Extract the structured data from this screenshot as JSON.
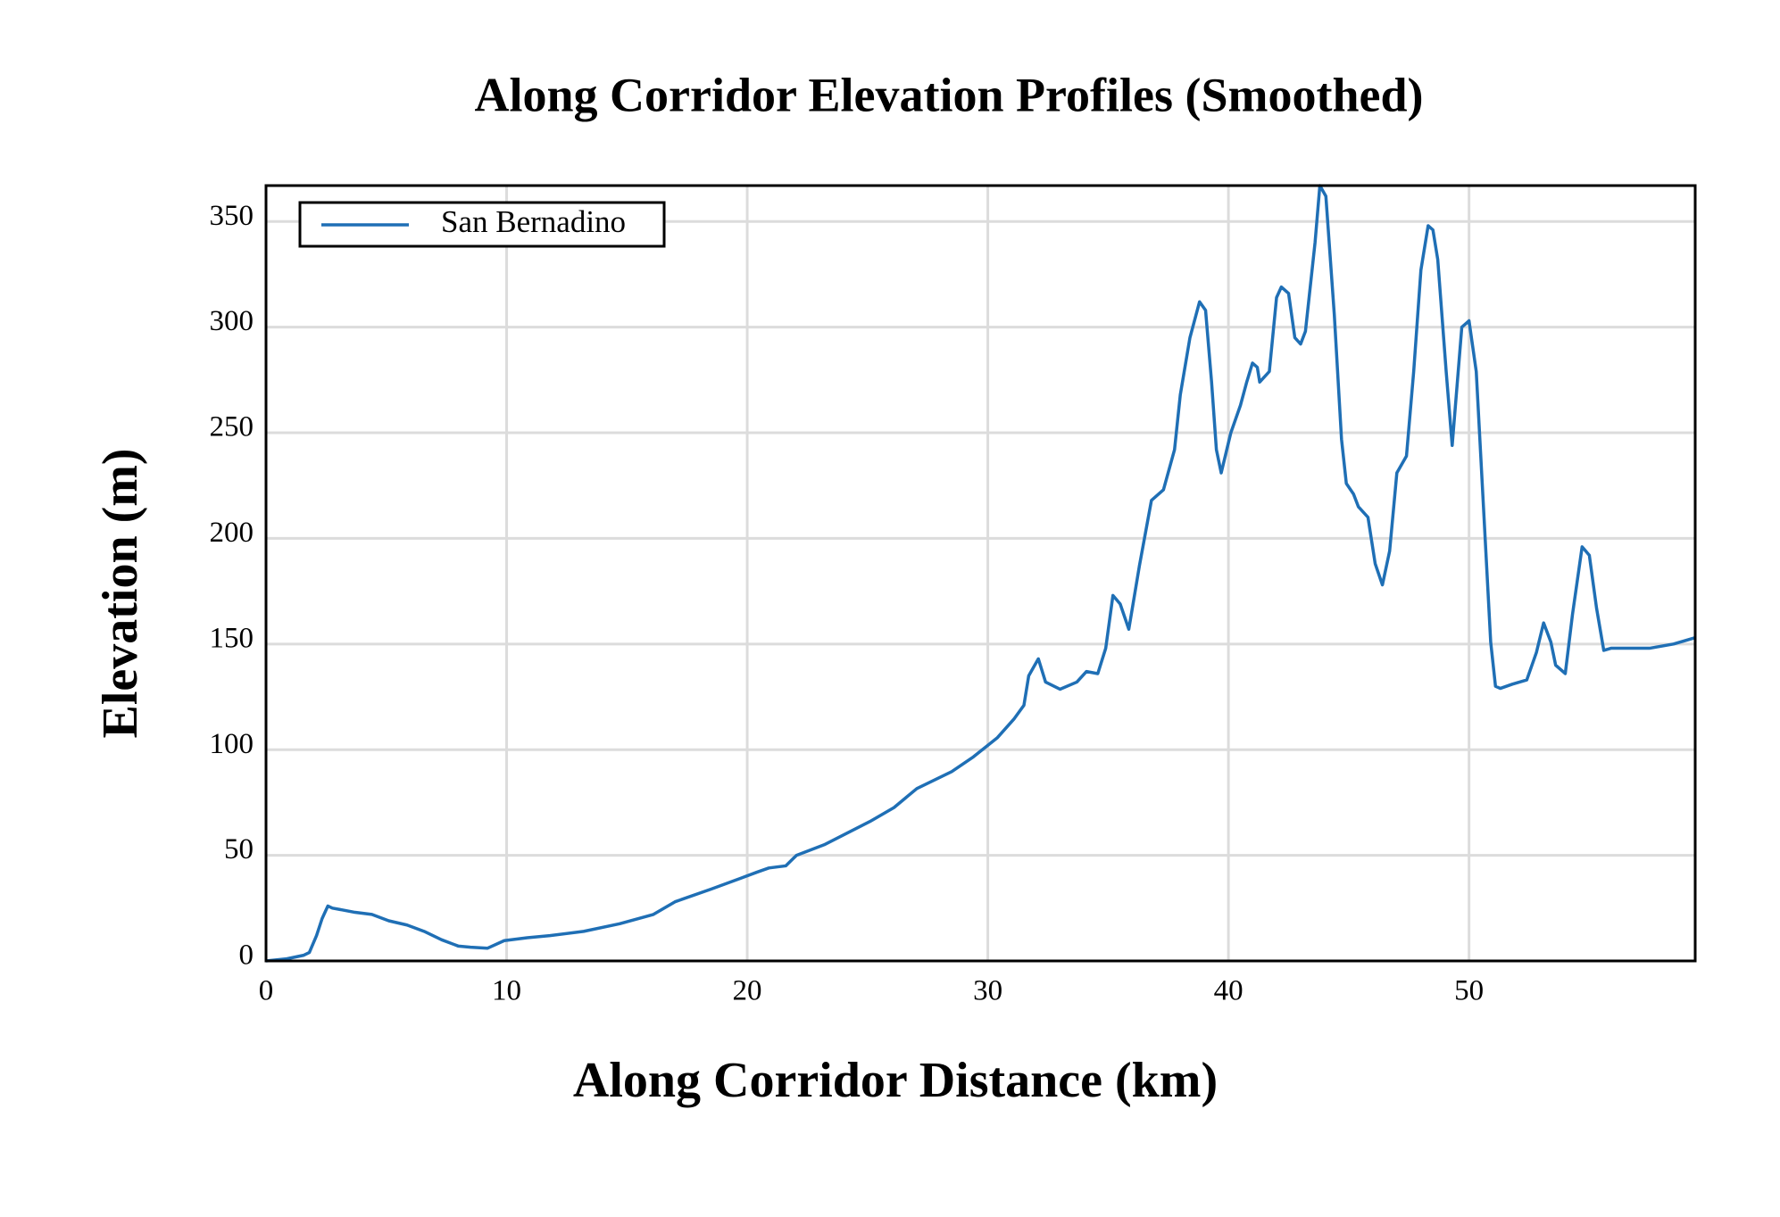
{
  "chart_data": {
    "type": "line",
    "title": "Along Corridor Elevation Profiles (Smoothed)",
    "x_label": "Along Corridor Distance (km)",
    "y_label": "Elevation (m)",
    "x": [
      0,
      0.86,
      1.57,
      1.8,
      2.1,
      2.33,
      2.57,
      2.76,
      3.24,
      3.7,
      4.4,
      5.1,
      5.86,
      6.57,
      7.3,
      8.0,
      8.5,
      9.2,
      9.9,
      10.86,
      11.8,
      13.2,
      14.7,
      16.1,
      17.0,
      18.5,
      19.7,
      20.4,
      20.9,
      21.6,
      22.05,
      23.2,
      25.1,
      26.1,
      27.05,
      28.5,
      29.4,
      30.4,
      31.1,
      31.5,
      31.7,
      32.1,
      32.4,
      33.0,
      33.7,
      34.1,
      34.57,
      34.9,
      35.2,
      35.5,
      35.86,
      36.3,
      36.8,
      37.3,
      37.76,
      38.0,
      38.4,
      38.8,
      39.05,
      39.3,
      39.5,
      39.7,
      40.1,
      40.5,
      40.76,
      41.0,
      41.2,
      41.3,
      41.7,
      42.0,
      42.2,
      42.5,
      42.76,
      43.0,
      43.2,
      43.6,
      43.8,
      44.05,
      44.4,
      44.7,
      44.9,
      45.2,
      45.4,
      45.8,
      46.1,
      46.4,
      46.7,
      47.0,
      47.4,
      47.7,
      48.0,
      48.3,
      48.5,
      48.7,
      49.05,
      49.3,
      49.7,
      50.0,
      50.3,
      50.6,
      50.9,
      51.1,
      51.3,
      51.8,
      52.4,
      52.8,
      53.1,
      53.4,
      53.6,
      54.0,
      54.3,
      54.7,
      55.0,
      55.3,
      55.6,
      55.9,
      57.5,
      58.5,
      59.4
    ],
    "series": [
      {
        "name": "San Bernadino",
        "color": "#1f6fb5",
        "values": [
          0,
          1,
          2.7,
          4,
          12,
          20,
          26,
          25,
          24,
          23,
          22,
          19,
          17,
          14,
          10,
          7,
          6.5,
          6,
          9.6,
          11,
          12,
          14,
          17.6,
          22,
          28,
          34,
          39,
          42,
          44,
          45,
          50,
          55,
          66,
          72.6,
          81.6,
          89.6,
          96.6,
          105.7,
          114.7,
          121,
          135,
          143,
          132,
          128.6,
          132,
          137,
          136,
          148,
          173,
          169,
          157,
          187,
          218,
          223,
          242,
          268,
          295,
          312,
          308,
          274,
          242,
          231,
          250,
          263,
          274,
          283,
          281,
          274,
          279,
          314,
          319,
          316,
          295,
          292,
          298,
          340,
          367,
          362,
          306,
          247,
          226,
          221,
          215,
          210,
          188,
          178,
          194,
          231,
          239,
          279,
          327,
          348,
          346,
          332,
          279,
          244,
          300,
          303,
          279,
          215,
          151,
          130,
          129,
          131,
          133,
          146,
          160,
          151,
          140,
          136,
          164,
          196,
          192,
          167,
          147,
          148,
          148,
          150,
          153
        ]
      }
    ],
    "xlim": [
      0,
      59.4
    ],
    "ylim": [
      0,
      367
    ],
    "xticks": [
      0,
      10,
      20,
      30,
      40,
      50
    ],
    "yticks": [
      0,
      50,
      100,
      150,
      200,
      250,
      300,
      350
    ],
    "grid": true,
    "legend": "upper left"
  }
}
